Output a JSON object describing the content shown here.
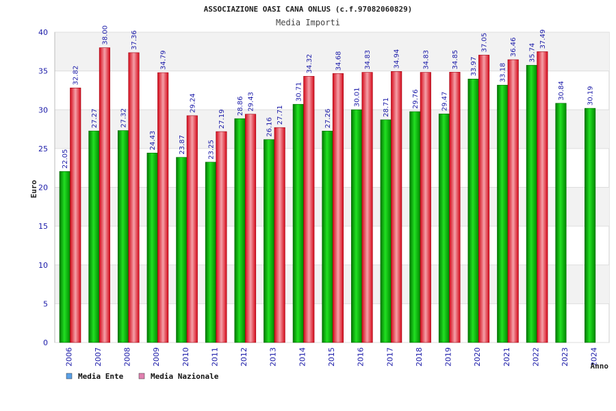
{
  "chart_data": {
    "type": "bar",
    "title": "ASSOCIAZIONE OASI CANA ONLUS (c.f.97082060829)",
    "subtitle": "Media Importi",
    "xlabel": "Anno",
    "ylabel": "Euro",
    "ylim": [
      0,
      40
    ],
    "yticks": [
      0,
      5,
      10,
      15,
      20,
      25,
      30,
      35,
      40
    ],
    "grid": "horizontal-bands",
    "legend_position": "bottom-left",
    "categories": [
      "2006",
      "2007",
      "2008",
      "2009",
      "2010",
      "2011",
      "2012",
      "2013",
      "2014",
      "2015",
      "2016",
      "2017",
      "2018",
      "2019",
      "2020",
      "2021",
      "2022",
      "2023",
      "2024"
    ],
    "series": [
      {
        "name": "Media Ente",
        "color": "#00a000",
        "legend_color": "#5aa0e6",
        "values": [
          22.05,
          27.27,
          27.32,
          24.43,
          23.87,
          23.25,
          28.86,
          26.16,
          30.71,
          27.26,
          30.01,
          28.71,
          29.76,
          29.47,
          33.97,
          33.18,
          35.74,
          30.84,
          30.19
        ],
        "labels": [
          "22.05",
          "27.27",
          "27.32",
          "24.43",
          "23.87",
          "23.25",
          "28.86",
          "26.16",
          "30.71",
          "27.26",
          "30.01",
          "28.71",
          "29.76",
          "29.47",
          "33.97",
          "33.18",
          "35.74",
          "30.84",
          "30.19"
        ]
      },
      {
        "name": "Media Nazionale",
        "color": "#e01020",
        "legend_color": "#e080b0",
        "values": [
          32.82,
          38.0,
          37.36,
          34.79,
          29.24,
          27.19,
          29.43,
          27.71,
          34.32,
          34.68,
          34.83,
          34.94,
          34.83,
          34.85,
          37.05,
          36.46,
          37.49,
          null,
          null
        ],
        "labels": [
          "32.82",
          "38.00",
          "37.36",
          "34.79",
          "29.24",
          "27.19",
          "29.43",
          "27.71",
          "34.32",
          "34.68",
          "34.83",
          "34.94",
          "34.83",
          "34.85",
          "37.05",
          "36.46",
          "37.49",
          null,
          null
        ]
      }
    ]
  }
}
